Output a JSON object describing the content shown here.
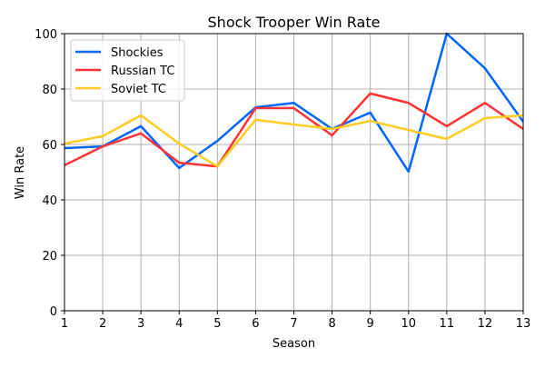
{
  "chart_data": {
    "type": "line",
    "title": "Shock Trooper Win Rate",
    "xlabel": "Season",
    "ylabel": "Win Rate",
    "x": [
      1,
      2,
      3,
      4,
      5,
      6,
      7,
      8,
      9,
      10,
      11,
      12,
      13
    ],
    "xlim": [
      1,
      13
    ],
    "ylim": [
      0,
      100
    ],
    "yticks": [
      0,
      20,
      40,
      60,
      80,
      100
    ],
    "grid": true,
    "legend": "top-left",
    "series": [
      {
        "name": "Shockies",
        "color": "#0066ff",
        "values": [
          58.7,
          59.3,
          66.6,
          51.5,
          61.3,
          73.4,
          75.0,
          65.6,
          71.5,
          50.2,
          100,
          87.5,
          68.2
        ]
      },
      {
        "name": "Russian TC",
        "color": "#ff3333",
        "values": [
          52.5,
          59.3,
          64.0,
          53.4,
          52.1,
          73.1,
          73.1,
          63.3,
          78.4,
          75.0,
          66.6,
          75.0,
          65.6
        ]
      },
      {
        "name": "Soviet TC",
        "color": "#ffcc22",
        "values": [
          60.3,
          63.0,
          70.5,
          60.3,
          52.1,
          68.9,
          67.2,
          65.6,
          68.5,
          65.2,
          62.0,
          69.5,
          70.5
        ]
      }
    ]
  }
}
